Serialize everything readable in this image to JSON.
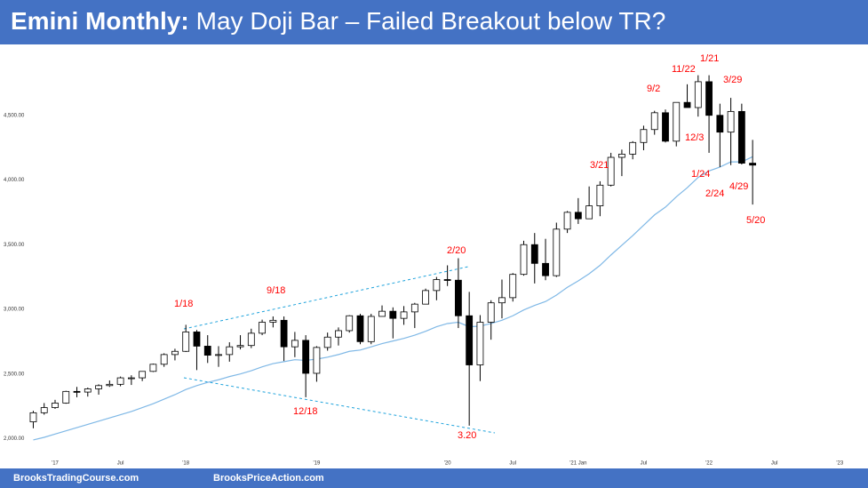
{
  "chart_data": {
    "type": "candlestick",
    "title": [
      "Emini Monthly:",
      "May Doji Bar – Failed Breakout below TR?"
    ],
    "x": [
      -2,
      -1,
      0,
      1,
      2,
      3,
      4,
      5,
      6,
      7,
      8,
      9,
      10,
      11,
      12,
      13,
      14,
      15,
      16,
      17,
      18,
      19,
      20,
      21,
      22,
      23,
      24,
      25,
      26,
      27,
      28,
      29,
      30,
      31,
      32,
      33,
      34,
      35,
      36,
      37,
      38,
      39,
      40,
      41,
      42,
      43,
      44,
      45,
      46,
      47,
      48,
      49,
      50,
      51,
      52,
      53,
      54,
      55,
      56,
      57,
      58,
      59,
      60,
      61,
      62,
      63,
      64
    ],
    "series": [
      {
        "open": [
          2130,
          2200,
          2240,
          2275,
          2365,
          2360,
          2385,
          2410,
          2420,
          2470,
          2470,
          2520,
          2575,
          2650,
          2675,
          2825,
          2715,
          2645,
          2650,
          2710,
          2720,
          2815,
          2900,
          2915,
          2710,
          2760,
          2505,
          2705,
          2785,
          2835,
          2950,
          2750,
          2945,
          2985,
          2930,
          2980,
          3040,
          3145,
          3230,
          3225,
          2950,
          2570,
          2900,
          3050,
          3090,
          3270,
          3500,
          3355,
          3260,
          3620,
          3750,
          3700,
          3800,
          3960,
          4175,
          4200,
          4290,
          4390,
          4520,
          4300,
          4600,
          4560,
          4760,
          4500,
          4370,
          4530,
          4130
        ],
        "high": [
          2215,
          2275,
          2300,
          2370,
          2400,
          2395,
          2420,
          2450,
          2480,
          2490,
          2520,
          2580,
          2660,
          2695,
          2880,
          2840,
          2800,
          2715,
          2745,
          2800,
          2850,
          2920,
          2945,
          2945,
          2825,
          2800,
          2715,
          2820,
          2860,
          2955,
          2965,
          2965,
          3030,
          3015,
          3025,
          3050,
          3160,
          3250,
          3340,
          3395,
          3135,
          2955,
          3070,
          3230,
          3280,
          3530,
          3590,
          3545,
          3670,
          3760,
          3860,
          3950,
          3990,
          4210,
          4235,
          4300,
          4420,
          4535,
          4545,
          4600,
          4740,
          4810,
          4810,
          4590,
          4635,
          4590,
          4310
        ],
        "low": [
          2080,
          2185,
          2230,
          2270,
          2320,
          2325,
          2340,
          2400,
          2405,
          2415,
          2445,
          2515,
          2555,
          2605,
          2670,
          2530,
          2585,
          2555,
          2595,
          2690,
          2700,
          2800,
          2860,
          2600,
          2630,
          2320,
          2440,
          2680,
          2720,
          2820,
          2730,
          2730,
          2945,
          2775,
          2880,
          2855,
          3040,
          3070,
          3180,
          2855,
          2100,
          2445,
          2765,
          2930,
          3060,
          3260,
          3200,
          3225,
          3250,
          3590,
          3660,
          3700,
          3720,
          3950,
          4030,
          4160,
          4230,
          4350,
          4290,
          4260,
          4560,
          4490,
          4210,
          4100,
          4115,
          4120,
          3810
        ],
        "close": [
          2200,
          2240,
          2275,
          2365,
          2360,
          2385,
          2410,
          2420,
          2470,
          2470,
          2520,
          2575,
          2650,
          2675,
          2825,
          2715,
          2645,
          2650,
          2710,
          2720,
          2815,
          2900,
          2915,
          2710,
          2760,
          2505,
          2705,
          2785,
          2835,
          2950,
          2750,
          2945,
          2985,
          2930,
          2980,
          3040,
          3145,
          3230,
          3225,
          2950,
          2570,
          2900,
          3050,
          3090,
          3270,
          3500,
          3355,
          3260,
          3620,
          3750,
          3700,
          3800,
          3960,
          4175,
          4200,
          4290,
          4390,
          4520,
          4300,
          4600,
          4560,
          4760,
          4500,
          4370,
          4530,
          4130,
          4115
        ],
        "up_color": "#ffffff",
        "down_color": "#000000"
      }
    ],
    "ma": {
      "color": "#7fb8e6",
      "values": [
        1990,
        2010,
        2035,
        2060,
        2085,
        2110,
        2135,
        2160,
        2185,
        2210,
        2240,
        2270,
        2305,
        2340,
        2380,
        2410,
        2435,
        2455,
        2480,
        2500,
        2525,
        2555,
        2580,
        2595,
        2610,
        2605,
        2615,
        2630,
        2650,
        2675,
        2685,
        2710,
        2735,
        2755,
        2775,
        2800,
        2830,
        2865,
        2890,
        2900,
        2865,
        2870,
        2890,
        2915,
        2950,
        2995,
        3030,
        3060,
        3110,
        3170,
        3220,
        3275,
        3340,
        3420,
        3495,
        3570,
        3650,
        3730,
        3790,
        3870,
        3940,
        4020,
        4070,
        4100,
        4140,
        4140,
        4180
      ]
    },
    "xlim": [
      -2.2,
      73.2
    ],
    "xticks": [
      {
        "value": 0,
        "label": "'17"
      },
      {
        "value": 6,
        "label": "Jul"
      },
      {
        "value": 12,
        "label": "'18"
      },
      {
        "value": 24,
        "label": "'19"
      },
      {
        "value": 36,
        "label": "'20"
      },
      {
        "value": 42,
        "label": "Jul"
      },
      {
        "value": 48,
        "label": "'21 Jan"
      },
      {
        "value": 54,
        "label": "Jul"
      },
      {
        "value": 60,
        "label": "'22"
      },
      {
        "value": 66,
        "label": "Jul"
      },
      {
        "value": 72,
        "label": "'23"
      }
    ],
    "ylim": [
      1900,
      5000
    ],
    "yticks": [
      {
        "value": 2000,
        "label": "2,000.00"
      },
      {
        "value": 2500,
        "label": "2,500.00"
      },
      {
        "value": 3000,
        "label": "3,000.00"
      },
      {
        "value": 3500,
        "label": "3,500.00"
      },
      {
        "value": 4000,
        "label": "4,000.00"
      },
      {
        "value": 4500,
        "label": "4,500.00"
      }
    ],
    "annotations": [
      "1/18",
      "9/18",
      "12/18",
      "2/20",
      "3.20",
      "3/21",
      "9/2",
      "11/22",
      "1/21",
      "12/3",
      "3/29",
      "1/24",
      "2/24",
      "4/29",
      "5/20"
    ],
    "annotation_color": "#ff0000",
    "footer": [
      "BrooksTradingCourse.com",
      "BrooksPriceAction.com"
    ]
  }
}
